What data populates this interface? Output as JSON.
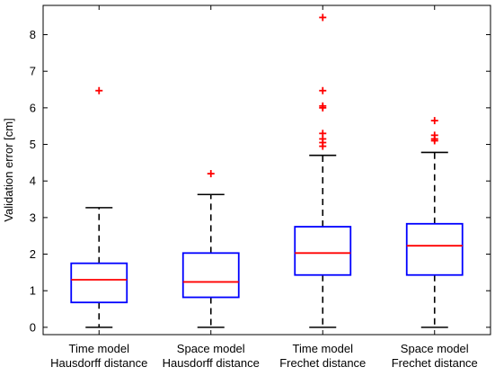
{
  "chart_data": {
    "type": "box",
    "title": "",
    "xlabel": "",
    "ylabel": "Validation error [cm]",
    "ylim": [
      -0.2,
      8.8
    ],
    "yticks": [
      0,
      1,
      2,
      3,
      4,
      5,
      6,
      7,
      8
    ],
    "grid": false,
    "categories": [
      [
        "Time model",
        "Hausdorff distance"
      ],
      [
        "Space model",
        "Hausdorff distance"
      ],
      [
        "Time model",
        "Frechet distance"
      ],
      [
        "Space model",
        "Frechet distance"
      ]
    ],
    "boxes": [
      {
        "whisker_low": 0,
        "q1": 0.68,
        "median": 1.3,
        "q3": 1.75,
        "whisker_high": 3.27,
        "outliers": [
          6.47
        ]
      },
      {
        "whisker_low": 0,
        "q1": 0.82,
        "median": 1.24,
        "q3": 2.03,
        "whisker_high": 3.63,
        "outliers": [
          4.2
        ]
      },
      {
        "whisker_low": 0,
        "q1": 1.43,
        "median": 2.03,
        "q3": 2.75,
        "whisker_high": 4.7,
        "outliers": [
          4.95,
          5.05,
          5.15,
          5.3,
          6.0,
          6.05,
          6.47,
          8.47
        ]
      },
      {
        "whisker_low": 0,
        "q1": 1.43,
        "median": 2.23,
        "q3": 2.83,
        "whisker_high": 4.78,
        "outliers": [
          5.1,
          5.15,
          5.25,
          5.65
        ]
      }
    ],
    "colors": {
      "box": "#0000ff",
      "median": "#ff0000",
      "whisker": "#000000",
      "outlier": "#ff0000"
    }
  }
}
